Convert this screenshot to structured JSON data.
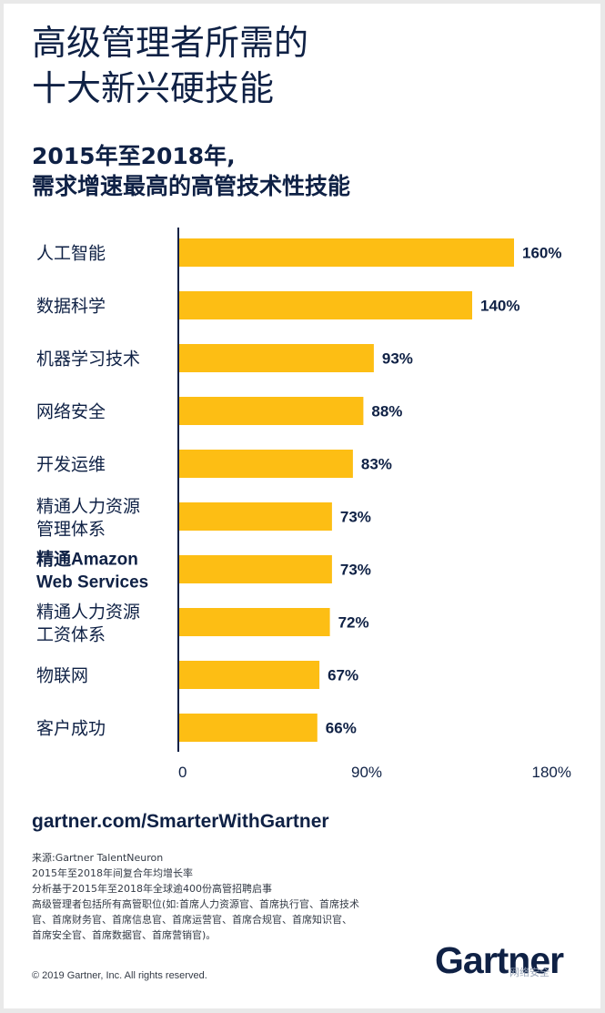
{
  "title_lines": [
    "高级管理者所需的",
    "十大新兴硬技能"
  ],
  "subtitle_lines": [
    "2015年至2018年,",
    "需求增速最高的高管技术性技能"
  ],
  "chart_data": {
    "type": "bar",
    "orientation": "horizontal",
    "categories": [
      [
        "人工智能"
      ],
      [
        "数据科学"
      ],
      [
        "机器学习技术"
      ],
      [
        "网络安全"
      ],
      [
        "开发运维"
      ],
      [
        "精通人力资源",
        "管理体系"
      ],
      [
        "精通Amazon",
        "Web Services"
      ],
      [
        "精通人力资源",
        "工资体系"
      ],
      [
        "物联网"
      ],
      [
        "客户成功"
      ]
    ],
    "values": [
      160,
      140,
      93,
      88,
      83,
      73,
      73,
      72,
      67,
      66
    ],
    "value_labels": [
      "160%",
      "140%",
      "93%",
      "88%",
      "83%",
      "73%",
      "73%",
      "72%",
      "67%",
      "66%"
    ],
    "xlim": [
      0,
      180
    ],
    "ticks": [
      0,
      90,
      180
    ],
    "tick_labels": [
      "0",
      "90%",
      "180%"
    ],
    "bar_color": "#fdbe14",
    "axis_color": "#0f2145",
    "grid": false
  },
  "url": "gartner.com/SmarterWithGartner",
  "notes": [
    "来源:Gartner TalentNeuron",
    "2015年至2018年间复合年均增长率",
    "分析基于2015年至2018年全球逾400份高管招聘启事",
    "高级管理者包括所有高管职位(如:首席人力资源官、首席执行官、首席技术官、首席财务官、首席信息官、首席运营官、首席合规官、首席知识官、首席安全官、首席数据官、首席营销官)。"
  ],
  "copyright": "© 2019 Gartner, Inc. All rights reserved.",
  "logo_text": "Gartner",
  "watermark_text": "网络安全"
}
